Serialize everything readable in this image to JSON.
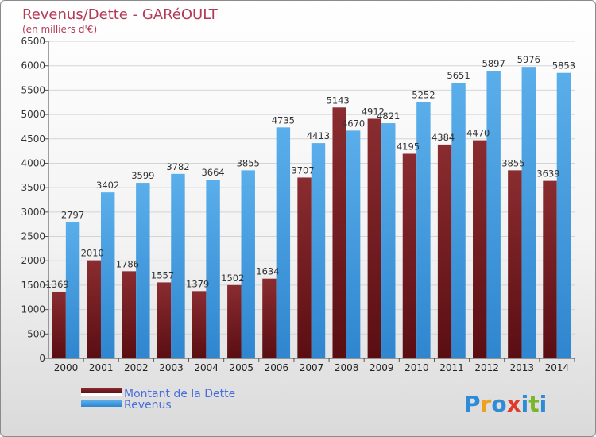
{
  "chart_data": {
    "type": "bar",
    "title": "Revenus/Dette - GARéOULT",
    "subtitle": "(en milliers d'€)",
    "categories": [
      "2000",
      "2001",
      "2002",
      "2003",
      "2004",
      "2005",
      "2006",
      "2007",
      "2008",
      "2009",
      "2010",
      "2011",
      "2012",
      "2013",
      "2014"
    ],
    "series": [
      {
        "name": "Montant de la Dette",
        "color": "#7a1f24",
        "values": [
          1369,
          2010,
          1786,
          1557,
          1379,
          1502,
          1634,
          3707,
          5143,
          4912,
          4195,
          4384,
          4470,
          3855,
          3639
        ],
        "labels": [
          "1369",
          "2010",
          "1786",
          "1557",
          "1379",
          "1502",
          "1634",
          "3707",
          "5143",
          "4912",
          "4195",
          "4384",
          "4470",
          "3855",
          "3639"
        ]
      },
      {
        "name": "Revenus",
        "color": "#4b9de0",
        "values": [
          2797,
          3402,
          3599,
          3782,
          3664,
          3855,
          4735,
          4413,
          4670,
          4821,
          5252,
          5651,
          5897,
          5976,
          5853
        ],
        "labels": [
          "2797",
          "3402",
          "3599",
          "3782",
          "3664",
          "3855",
          "4735",
          "4413",
          "4670",
          "4821",
          "5252",
          "5651",
          "5897",
          "5976",
          "5853"
        ]
      }
    ],
    "ylim": [
      0,
      6500
    ],
    "yticks": [
      0,
      500,
      1000,
      1500,
      2000,
      2500,
      3000,
      3500,
      4000,
      4500,
      5000,
      5500,
      6000,
      6500
    ],
    "grid": true,
    "legend_position": "bottom-left"
  },
  "legend": {
    "items": [
      "Montant de la Dette",
      "Revenus"
    ]
  },
  "brand": {
    "logo_letters": [
      "P",
      "r",
      "o",
      "x",
      "i",
      "t",
      "i"
    ],
    "logo_colors": [
      "#2e8bd8",
      "#f0a020",
      "#2e8bd8",
      "#e23a2a",
      "#2e8bd8",
      "#7ab52e",
      "#2e8bd8"
    ]
  }
}
